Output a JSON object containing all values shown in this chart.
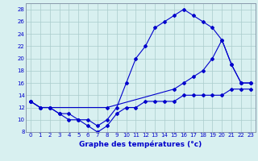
{
  "line1_x": [
    0,
    1,
    2,
    3,
    4,
    5,
    6,
    7,
    8,
    9,
    10,
    11,
    12,
    13,
    14,
    15,
    16,
    17,
    18,
    19,
    20,
    21,
    22,
    23
  ],
  "line1_y": [
    13,
    12,
    12,
    11,
    11,
    10,
    10,
    9,
    10,
    12,
    16,
    20,
    22,
    25,
    26,
    27,
    28,
    27,
    26,
    25,
    23,
    19,
    16,
    16
  ],
  "line2_x": [
    0,
    1,
    2,
    3,
    4,
    5,
    6,
    7,
    8,
    9,
    10,
    11,
    12,
    13,
    14,
    15,
    16,
    17,
    18,
    19,
    20,
    21,
    22,
    23
  ],
  "line2_y": [
    13,
    12,
    12,
    11,
    10,
    10,
    9,
    8,
    9,
    11,
    12,
    12,
    13,
    13,
    13,
    13,
    14,
    14,
    14,
    14,
    14,
    15,
    15,
    15
  ],
  "line3_x": [
    0,
    1,
    2,
    8,
    15,
    16,
    17,
    18,
    19,
    20,
    21,
    22,
    23
  ],
  "line3_y": [
    13,
    12,
    12,
    12,
    15,
    16,
    17,
    18,
    20,
    23,
    19,
    16,
    16
  ],
  "line_color": "#0000cc",
  "background_color": "#d8f0f0",
  "grid_color": "#aacccc",
  "xlabel": "Graphe des températures (°c)",
  "xlim_min": -0.5,
  "xlim_max": 23.5,
  "ylim_min": 8,
  "ylim_max": 29,
  "yticks": [
    8,
    10,
    12,
    14,
    16,
    18,
    20,
    22,
    24,
    26,
    28
  ],
  "xticks": [
    0,
    1,
    2,
    3,
    4,
    5,
    6,
    7,
    8,
    9,
    10,
    11,
    12,
    13,
    14,
    15,
    16,
    17,
    18,
    19,
    20,
    21,
    22,
    23
  ],
  "tick_fontsize": 5.0,
  "xlabel_fontsize": 6.5
}
